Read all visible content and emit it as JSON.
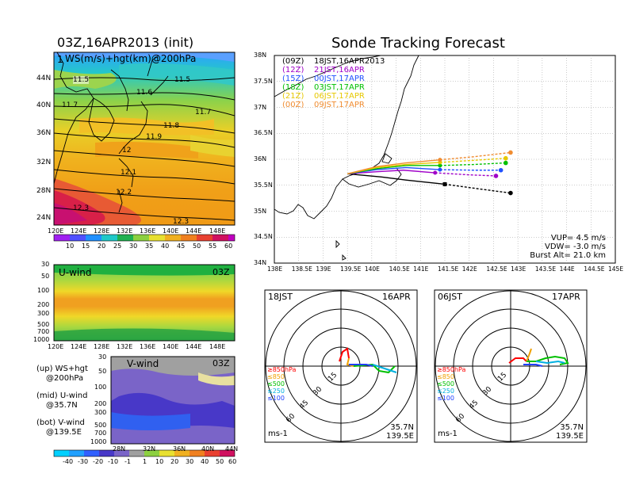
{
  "left_title": "03Z,16APR2013 (init)",
  "right_title": "Sonde Tracking Forecast",
  "map_panel": {
    "overlay_label": "WS(m/s)+hgt(km)@200hPa",
    "corner_label": "1",
    "lat_ticks": [
      "44N",
      "40N",
      "36N",
      "32N",
      "28N",
      "24N"
    ],
    "lon_ticks": [
      "120E",
      "124E",
      "128E",
      "132E",
      "136E",
      "140E",
      "144E",
      "148E"
    ],
    "contour_labels": [
      "11.5",
      "11.5",
      "11.6",
      "11.7",
      "11.7",
      "11.8",
      "11.9",
      "12",
      "12.1",
      "12.2",
      "12.3",
      "12.3"
    ],
    "colorbar_ticks": [
      "10",
      "15",
      "20",
      "25",
      "30",
      "35",
      "40",
      "45",
      "50",
      "55",
      "60"
    ]
  },
  "u_panel": {
    "name": "U-wind",
    "time": "03Z",
    "p_ticks": [
      "30",
      "50",
      "100",
      "200",
      "300",
      "500",
      "700",
      "1000"
    ],
    "lon_ticks": [
      "120E",
      "124E",
      "128E",
      "132E",
      "136E",
      "140E",
      "144E",
      "148E"
    ]
  },
  "v_panel": {
    "name": "V-wind",
    "time": "03Z",
    "p_ticks": [
      "30",
      "50",
      "100",
      "200",
      "300",
      "500",
      "700",
      "1000"
    ],
    "lat_ticks": [
      "28N",
      "32N",
      "36N",
      "40N",
      "44N"
    ]
  },
  "legend_notes": [
    {
      "a": "(up) WS+hgt",
      "b": "@200hPa"
    },
    {
      "a": "(mid) U-wind",
      "b": "@35.7N"
    },
    {
      "a": "(bot) V-wind",
      "b": "@139.5E"
    }
  ],
  "bottom_colorbar_ticks": [
    "-40",
    "-30",
    "-20",
    "-10",
    "-1",
    "1",
    "10",
    "20",
    "30",
    "40",
    "50",
    "60"
  ],
  "track_panel": {
    "lat_ticks": [
      "38N",
      "37.5N",
      "37N",
      "36.5N",
      "36N",
      "35.5N",
      "35N",
      "34.5N",
      "34N"
    ],
    "lon_ticks": [
      "138E",
      "138.5E",
      "139E",
      "139.5E",
      "140E",
      "140.5E",
      "141E",
      "141.5E",
      "142E",
      "142.5E",
      "143E",
      "143.5E",
      "144E",
      "144.5E",
      "145E"
    ],
    "legend": [
      {
        "code": "(09Z)",
        "time": "18JST,16APR2013",
        "color": "#000000"
      },
      {
        "code": "(12Z)",
        "time": "21JST,16APR",
        "color": "#a000c8"
      },
      {
        "code": "(15Z)",
        "time": "00JST,17APR",
        "color": "#2050ff"
      },
      {
        "code": "(18Z)",
        "time": "03JST,17APR",
        "color": "#00c000"
      },
      {
        "code": "(21Z)",
        "time": "06JST,17APR",
        "color": "#e6c800"
      },
      {
        "code": "(00Z)",
        "time": "09JST,17APR",
        "color": "#f08c30"
      }
    ],
    "vup": "VUP= 4.5 m/s",
    "vdw": "VDW= -3.0 m/s",
    "burst": "Burst Alt= 21.0 km"
  },
  "polar_left": {
    "time": "18JST",
    "date": "16APR",
    "ring_labels": [
      "15",
      "30",
      "45",
      "60"
    ],
    "level_labels": [
      "≥850hPa",
      "≤850",
      "≤500",
      "≤250",
      "≤100"
    ],
    "unit": "ms-1",
    "lat": "35.7N",
    "lon": "139.5E"
  },
  "polar_right": {
    "time": "06JST",
    "date": "17APR",
    "ring_labels": [
      "15",
      "30",
      "45",
      "60"
    ],
    "level_labels": [
      "≥850hPa",
      "≤850",
      "≤500",
      "≤250",
      "≤100"
    ],
    "unit": "ms-1",
    "lat": "35.7N",
    "lon": "139.5E"
  },
  "colors": {
    "level_850": "#ff0000",
    "level_lt850": "#f0a000",
    "level_500": "#00c000",
    "level_250": "#00b0e0",
    "level_100": "#2040ff"
  },
  "chart_data": {
    "type": "line",
    "title": "Sonde Tracking Forecast",
    "xlim": [
      138,
      145
    ],
    "ylim": [
      34,
      38
    ],
    "launch": {
      "lon": 139.5,
      "lat": 35.72
    },
    "series": [
      {
        "name": "(09Z) 18JST,16APR2013",
        "color": "#000000",
        "x": [
          139.5,
          140.2,
          140.7,
          141.5,
          142.2,
          142.85
        ],
        "y": [
          35.72,
          35.66,
          35.6,
          35.52,
          35.43,
          35.35
        ]
      },
      {
        "name": "(12Z) 21JST,16APR",
        "color": "#a000c8",
        "x": [
          139.5,
          140.1,
          140.65,
          141.3,
          142.0,
          142.55
        ],
        "y": [
          35.72,
          35.76,
          35.79,
          35.74,
          35.7,
          35.68
        ]
      },
      {
        "name": "(15Z) 00JST,17APR",
        "color": "#2050ff",
        "x": [
          139.5,
          140.1,
          140.7,
          141.4,
          142.1,
          142.65
        ],
        "y": [
          35.72,
          35.8,
          35.84,
          35.8,
          35.79,
          35.79
        ]
      },
      {
        "name": "(18Z) 03JST,17APR",
        "color": "#00c000",
        "x": [
          139.5,
          140.1,
          140.7,
          141.4,
          142.1,
          142.75
        ],
        "y": [
          35.72,
          35.82,
          35.88,
          35.88,
          35.9,
          35.93
        ]
      },
      {
        "name": "(21Z) 06JST,17APR",
        "color": "#e6c800",
        "x": [
          139.5,
          140.1,
          140.7,
          141.4,
          142.1,
          142.75
        ],
        "y": [
          35.72,
          35.84,
          35.9,
          35.94,
          35.98,
          36.02
        ]
      },
      {
        "name": "(00Z) 09JST,17APR",
        "color": "#f08c30",
        "x": [
          139.5,
          140.1,
          140.7,
          141.4,
          142.1,
          142.85
        ],
        "y": [
          35.72,
          35.86,
          35.93,
          35.99,
          36.05,
          36.13
        ]
      }
    ]
  }
}
